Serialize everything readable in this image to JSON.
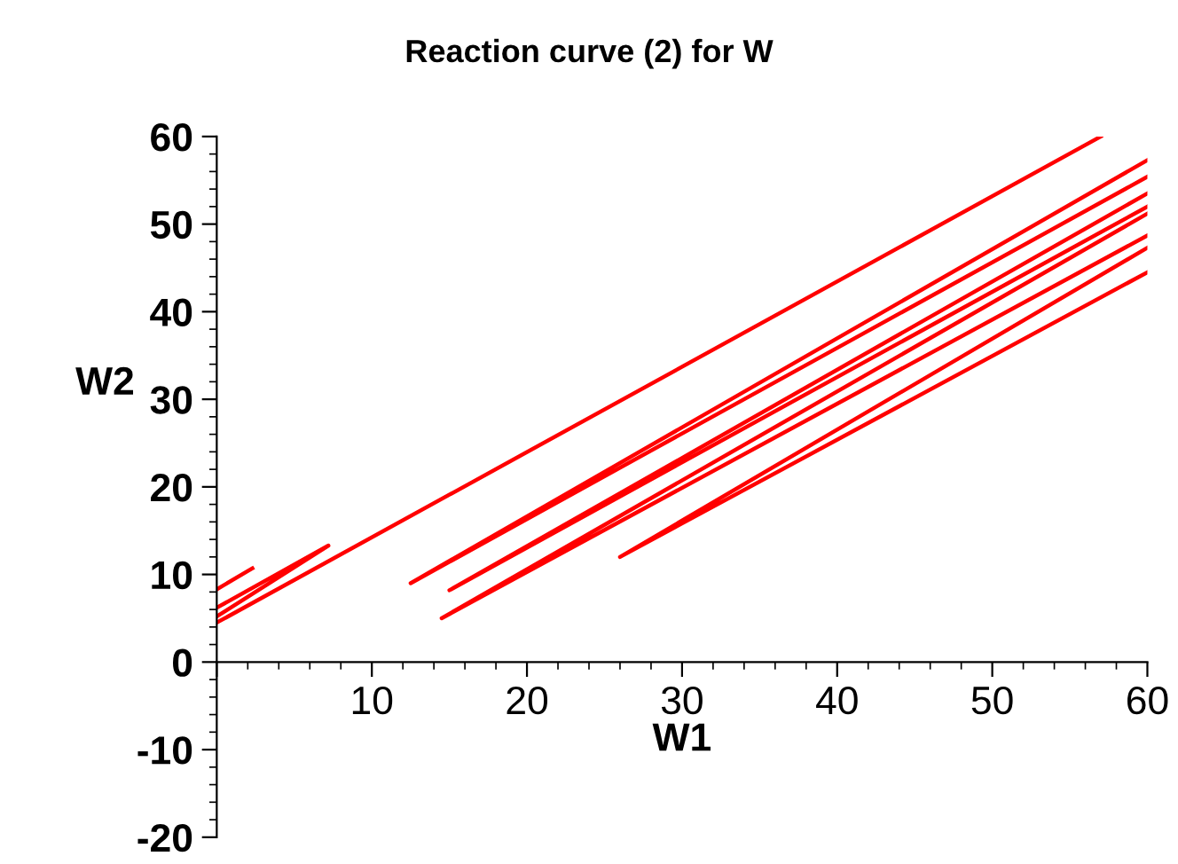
{
  "chart_data": {
    "type": "line",
    "title": "Reaction curve (2) for W",
    "xlabel": "W1",
    "ylabel": "W2",
    "series": [
      {
        "color": "#ff0000",
        "x": [
          0,
          2.3,
          null,
          0,
          7.2,
          0,
          null,
          0,
          57,
          null,
          60,
          12.5,
          60,
          null,
          60,
          15,
          60,
          null,
          60,
          14.5,
          60,
          null,
          60,
          26,
          60
        ],
        "values": [
          8.3,
          10.7,
          null,
          6.2,
          13.3,
          5.2,
          null,
          4.5,
          60,
          null,
          57.3,
          9,
          55.4,
          null,
          53.5,
          8.2,
          52,
          null,
          51.2,
          5,
          48.7,
          null,
          47.3,
          12,
          44.5
        ]
      }
    ],
    "xlim": [
      0,
      60
    ],
    "xticks": [
      {
        "value": 0,
        "label": null
      },
      10,
      20,
      30,
      40,
      50,
      60
    ],
    "ylim": [
      -20,
      60
    ],
    "yticks": [
      -20,
      -10,
      0,
      10,
      20,
      30,
      40,
      50,
      60
    ],
    "grid": false,
    "legend": false,
    "line_style": "solid",
    "marker": "none"
  }
}
